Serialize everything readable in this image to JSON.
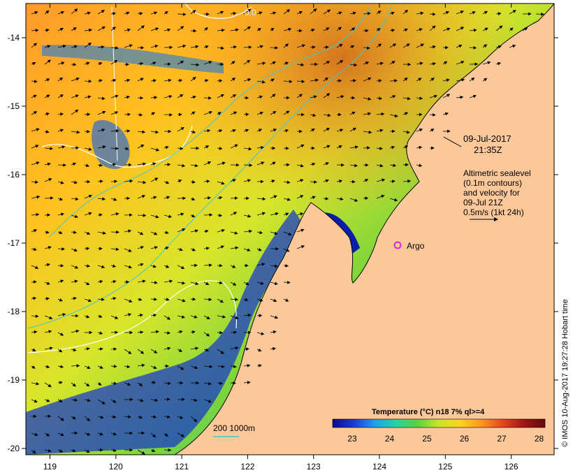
{
  "map": {
    "date_label": "09-Jul-2017",
    "time_label": "21:35Z",
    "legend_lines": [
      "Altimetric sealevel",
      "(0.1m contours)",
      "and velocity for",
      "09-Jul 21Z",
      "0.5m/s (1kt 24h)"
    ],
    "contour_label": "0.0",
    "argo_label": "Argo",
    "isobath_label": "200  1000m",
    "credit": "© IMOS 10-Aug-2017 19:27:28 Hobart time",
    "x_ticks": [
      "119",
      "120",
      "121",
      "122",
      "123",
      "124",
      "125",
      "126"
    ],
    "y_ticks": [
      "-14",
      "-15",
      "-16",
      "-17",
      "-18",
      "-19",
      "-20"
    ],
    "colors": {
      "land": "#fcc89a",
      "coast": "#000000",
      "argo_marker": "#e020e0",
      "isobath": "#40c8d0",
      "sealevel_contour": "#ffffff"
    }
  },
  "colorbar": {
    "title": "Temperature (°C) n18 7% ql>=4",
    "ticks": [
      "23",
      "24",
      "25",
      "26",
      "27",
      "28"
    ],
    "stops": [
      "#0a0a8c",
      "#1e3cd2",
      "#1ea0f0",
      "#28d2a0",
      "#5ad23c",
      "#c8e628",
      "#ffd21e",
      "#ff961e",
      "#e6461e",
      "#a01414",
      "#640a0a"
    ]
  }
}
